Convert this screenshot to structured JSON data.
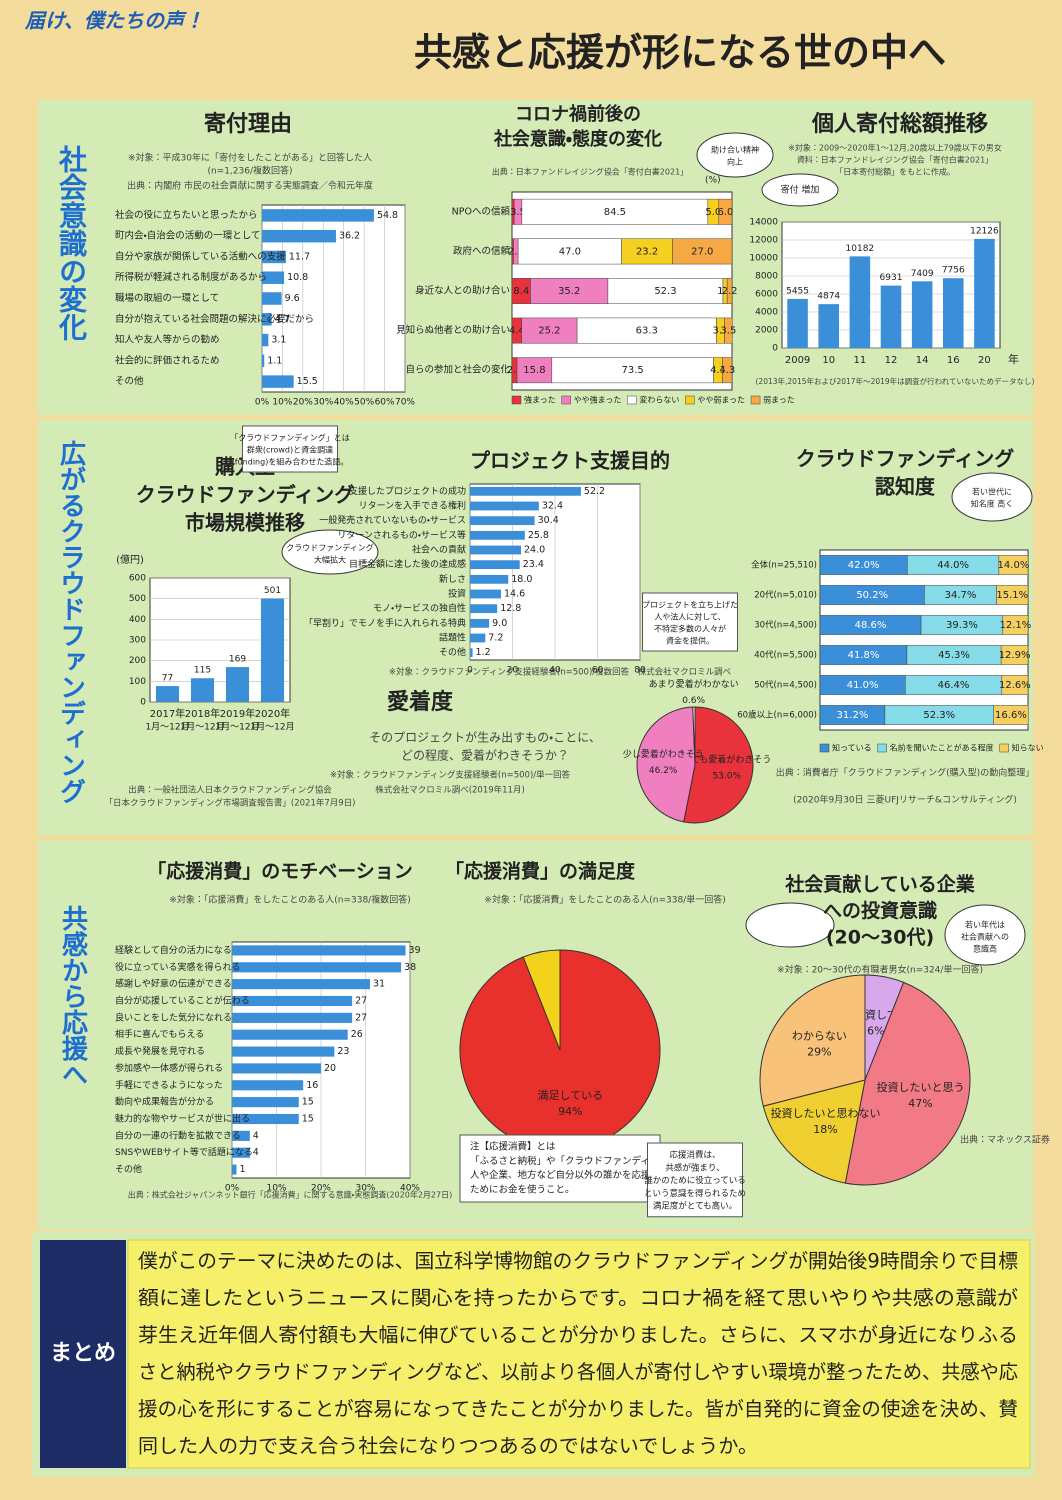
{
  "header": {
    "tagline": "届け、僕たちの声！",
    "title": "共感と応援が形になる世の中へ"
  },
  "sections": [
    {
      "title": "社会意識の変化"
    },
    {
      "title": "広がるクラウドファンディング"
    },
    {
      "title": "共感から応援へ"
    }
  ],
  "chart_data": [
    {
      "type": "hbar",
      "title": [
        "寄付理由"
      ],
      "notes": [
        "※対象：平成30年に「寄付をしたことがある」と回答した人",
        "(n=1,236/複数回答)",
        "出典：内閣府 市民の社会貢献に関する実態調査／令和元年度"
      ],
      "categories": [
        "社会の役に立ちたいと思ったから",
        "町内会・自治会の活動の一環として",
        "自分や家族が関係している活動への支援",
        "所得税が軽減される制度があるから",
        "職場の取組の一環として",
        "自分が抱えている社会問題の解決に必要だから",
        "知人や友人等からの勧め",
        "社会的に評価されるため",
        "その他"
      ],
      "values": [
        54.8,
        36.2,
        11.7,
        10.8,
        9.6,
        4.7,
        3.1,
        1.1,
        15.5
      ],
      "color": "#3a8fd8",
      "xlim": [
        0,
        70
      ],
      "xticks": [
        {
          "value": 0,
          "label": "0%"
        },
        {
          "value": 10,
          "label": "10%"
        },
        {
          "value": 20,
          "label": "20%"
        },
        {
          "value": 30,
          "label": "30%"
        },
        {
          "value": 40,
          "label": "40%"
        },
        {
          "value": 50,
          "label": "50%"
        },
        {
          "value": 60,
          "label": "60%"
        },
        {
          "value": 70,
          "label": "70%"
        }
      ],
      "grid": true
    },
    {
      "type": "stack",
      "title": [
        "コロナ禍前後の",
        "社会意識・態度の変化"
      ],
      "notes": [
        "出典：日本ファンドレイジング協会「寄付白書2021」"
      ],
      "unit": "(%)",
      "categories": [
        "NPOへの信頼",
        "政府への信頼",
        "身近な人との助け合い",
        "見知らぬ他者との助け合い",
        "自らの参加と社会の変化"
      ],
      "xlim": [
        0,
        100
      ],
      "series": [
        {
          "name": "強まった",
          "color": "#e8323c",
          "values": [
            1.0,
            0.7,
            8.4,
            4.4,
            2.3
          ],
          "value_labels": [
            null,
            null,
            "8.4",
            "4.4",
            "2.3"
          ]
        },
        {
          "name": "やや強まった",
          "color": "#f07fc0",
          "values": [
            3.5,
            2.1,
            35.2,
            25.2,
            15.8
          ],
          "value_labels": [
            "3.5",
            "2.1",
            "35.2",
            "25.2",
            "15.8"
          ]
        },
        {
          "name": "変わらない",
          "color": "#ffffff",
          "values": [
            84.5,
            47.0,
            52.3,
            63.3,
            73.5
          ],
          "value_labels": [
            "84.5",
            "47.0",
            "52.3",
            "63.3",
            "73.5"
          ]
        },
        {
          "name": "やや弱まった",
          "color": "#f5d020",
          "values": [
            5.0,
            23.2,
            1.9,
            3.7,
            4.1
          ],
          "value_labels": [
            "5.0",
            "23.2",
            "1.9",
            "3.7",
            "4.1"
          ]
        },
        {
          "name": "弱まった",
          "color": "#f5a844",
          "values": [
            6.0,
            27.0,
            2.2,
            3.5,
            4.3
          ],
          "value_labels": [
            "6.0",
            "27.0",
            "2.2",
            "3.5",
            "4.3"
          ]
        }
      ]
    },
    {
      "type": "vbar",
      "title": [
        "個人寄付総額推移"
      ],
      "notes": [
        "※対象：2009〜2020年1〜12月,20歳以上79歳以下の男女",
        "資料：日本ファンドレイジング協会「寄付白書2021」",
        "「日本寄付総額」をもとに作成。",
        "(2013年,2015年および2017年〜2019年は調査が行われていないためデータなし)"
      ],
      "categories": [
        "2009",
        "10",
        "11",
        "12",
        "14",
        "16",
        "20"
      ],
      "x_unit": "年",
      "values": [
        5455,
        4874,
        10182,
        6931,
        7409,
        7756,
        12126
      ],
      "color": "#3a8fd8",
      "ylim": [
        0,
        14000
      ],
      "yticks": [
        0,
        2000,
        4000,
        6000,
        8000,
        10000,
        12000,
        14000
      ],
      "grid": true
    },
    {
      "type": "vbar",
      "title": [
        "購入型",
        "クラウドファンディング",
        "市場規模推移"
      ],
      "unit": "(億円)",
      "notes": [
        "出典：一般社団法人日本クラウドファンディング協会",
        "「日本クラウドファンディング市場調査報告書」(2021年7月9日)"
      ],
      "categories": [
        "2017年",
        "2018年",
        "2019年",
        "2020年"
      ],
      "category_sublabels": [
        "1月〜12月",
        "1月〜12月",
        "1月〜12月",
        "1月〜12月"
      ],
      "values": [
        77,
        115,
        169,
        501
      ],
      "color": "#3a8fd8",
      "ylim": [
        0,
        600
      ],
      "yticks": [
        0,
        100,
        200,
        300,
        400,
        500,
        600
      ],
      "grid": true
    },
    {
      "type": "hbar",
      "title": [
        "プロジェクト支援目的"
      ],
      "notes": [
        "※対象：クラウドファンディング支援経験者(n=500)/複数回答　株式会社マクロミル調べ"
      ],
      "categories": [
        "支援したプロジェクトの成功",
        "リターンを入手できる権利",
        "一般発売されていないもの・サービス",
        "リターンされるもの・サービス等",
        "社会への貢献",
        "目標金額に達した後の達成感",
        "新しさ",
        "投資",
        "モノ・サービスの独自性",
        "「早割り」でモノを手に入れられる特典",
        "話題性",
        "その他"
      ],
      "values": [
        52.2,
        32.4,
        30.4,
        25.8,
        24.0,
        23.4,
        18.0,
        14.6,
        12.8,
        9.0,
        7.2,
        1.2
      ],
      "value_labels": [
        "52.2",
        "32.4",
        "30.4",
        "25.8",
        "24.0",
        "23.4",
        "18.0",
        "14.6",
        "12.8",
        "9.0",
        "7.2",
        "1.2"
      ],
      "color": "#3a8fd8",
      "xlim": [
        0,
        80
      ],
      "xticks": [
        0,
        20,
        40,
        60,
        80
      ],
      "grid": true
    },
    {
      "type": "stack",
      "title": [
        "クラウドファンディング",
        "認知度"
      ],
      "notes": [
        "出典：消費者庁「クラウドファンディング(購入型)の動向整理」",
        "(2020年9月30日 三菱UFJリサーチ&コンサルティング)"
      ],
      "categories": [
        "全体(n=25,510)",
        "20代(n=5,010)",
        "30代(n=4,500)",
        "40代(n=5,500)",
        "50代(n=4,500)",
        "60歳以上(n=6,000)"
      ],
      "xlim": [
        0,
        100
      ],
      "series": [
        {
          "name": "知っている",
          "color": "#3a8fd8",
          "values": [
            42.0,
            50.2,
            48.6,
            41.8,
            41.0,
            31.2
          ],
          "value_labels": [
            "42.0%",
            "50.2%",
            "48.6%",
            "41.8%",
            "41.0%",
            "31.2%"
          ]
        },
        {
          "name": "名前を聞いたことがある程度",
          "color": "#86dbe8",
          "values": [
            44.0,
            34.7,
            39.3,
            45.3,
            46.4,
            52.3
          ],
          "value_labels": [
            "44.0%",
            "34.7%",
            "39.3%",
            "45.3%",
            "46.4%",
            "52.3%"
          ]
        },
        {
          "name": "知らない",
          "color": "#f5d060",
          "values": [
            14.0,
            15.1,
            12.1,
            12.9,
            12.6,
            16.6
          ],
          "value_labels": [
            "14.0%",
            "15.1%",
            "12.1%",
            "12.9%",
            "12.6%",
            "16.6%"
          ]
        }
      ]
    },
    {
      "type": "pie",
      "title": [
        "愛着度"
      ],
      "notes": [
        "そのプロジェクトが生み出すもの・ことに、",
        "どの程度、愛着がわきそうか？",
        "※対象：クラウドファンディング支援経験者(n=500)/単一回答",
        "株式会社マクロミル調べ(2019年11月)"
      ],
      "categories": [
        "とても愛着がわきそう",
        "少し愛着がわきそう",
        "あまり愛着がわかない"
      ],
      "values": [
        53.0,
        46.2,
        0.6
      ],
      "value_labels": [
        "53.0%",
        "46.2%",
        "0.6%"
      ],
      "colors": [
        "#e8323c",
        "#f07fc0",
        "#ffffff"
      ]
    },
    {
      "type": "hbar",
      "title": [
        "「応援消費」のモチベーション"
      ],
      "notes": [
        "※対象：「応援消費」をしたことのある人(n=338/複数回答)",
        "出典：株式会社ジャパンネット銀行「応援消費」に関する意識・実態調査(2020年2月27日)"
      ],
      "categories": [
        "経験として自分の活力になる",
        "役に立っている実感を得られる",
        "感謝しや好意の伝達ができる",
        "自分が応援していることが伝わる",
        "良いことをした気分になれる",
        "相手に喜んでもらえる",
        "成長や発展を見守れる",
        "参加感や一体感が得られる",
        "手軽にできるようになった",
        "動向や成果報告が分かる",
        "魅力的な物やサービスが世に出る",
        "自分の一連の行動を拡散できる",
        "SNSやWEBサイト等で話題になる",
        "その他"
      ],
      "values": [
        39,
        38,
        31,
        27,
        27,
        26,
        23,
        20,
        16,
        15,
        15,
        4,
        4,
        1
      ],
      "color": "#3a8fd8",
      "xlim": [
        0,
        40
      ],
      "xticks": [
        {
          "value": 0,
          "label": "0%"
        },
        {
          "value": 10,
          "label": "10%"
        },
        {
          "value": 20,
          "label": "20%"
        },
        {
          "value": 30,
          "label": "30%"
        },
        {
          "value": 40,
          "label": "40%"
        }
      ],
      "grid": true
    },
    {
      "type": "pie",
      "title": [
        "「応援消費」の満足度"
      ],
      "notes": [
        "※対象：「応援消費」をしたことのある人(n=338/単一回答)"
      ],
      "categories": [
        "満足している",
        null
      ],
      "values": [
        94,
        6
      ],
      "value_labels": [
        "94%",
        null
      ],
      "colors": [
        "#e8302c",
        "#f2d21a"
      ]
    },
    {
      "type": "pie",
      "title": [
        "社会貢献している企業",
        "への投資意識",
        "(20〜30代)"
      ],
      "notes": [
        "※対象：20〜30代の有職者男女(n=324/単一回答)",
        "出典：マネックス証券"
      ],
      "categories": [
        "既に投資している",
        "投資したいと思う",
        "投資したいと思わない",
        "わからない"
      ],
      "values": [
        6,
        47,
        18,
        29
      ],
      "value_labels": [
        "6%",
        "47%",
        "18%",
        "29%"
      ],
      "colors": [
        "#d8a8ec",
        "#f27a86",
        "#f0d030",
        "#f8c278"
      ]
    }
  ],
  "bubbles": [
    {
      "lines": [
        "助け合い精神",
        "向上"
      ]
    },
    {
      "lines": [
        "寄付 増加"
      ]
    },
    {
      "lines": [
        "クラウドファンディング",
        "大幅拡大"
      ]
    },
    {
      "lines": [
        "若い世代に",
        "知名度 高く"
      ]
    },
    {
      "lines": [
        "若い年代は",
        "社会貢献への",
        "意識高"
      ]
    },
    {
      "lines": [
        "「クラウドファンディング」とは",
        "群衆(crowd)と資金調達",
        "(funding)を組み合わせた造語。"
      ]
    },
    {
      "lines": [
        "プロジェクトを立ち上げた",
        "人や法人に対して、",
        "不特定多数の人々が",
        "資金を提供。"
      ]
    },
    {
      "lines": [
        "注【応援消費】とは",
        "「ふるさと納税」や「クラウドファンディング」のように、",
        "人や企業、地方など自分以外の誰かを応援する",
        "ためにお金を使うこと。"
      ]
    },
    {
      "lines": [
        "応援消費は、",
        "共感が強まり、",
        "誰かのために役立っている",
        "という意識を得られるため",
        "満足度がとても高い。"
      ]
    }
  ],
  "summary": {
    "label": "まとめ",
    "lines": [
      "僕がこのテーマに決めたのは、国立科学博物館のクラウドファンディングが開始後9時間余りで目標",
      "額に達したというニュースに関心を持ったからです。コロナ禍を経て思いやりや共感の意識が",
      "芽生え近年個人寄付額も大幅に伸びていることが分かりました。さらに、スマホが身近になりふる",
      "さと納税やクラウドファンディングなど、以前より各個人が寄付しやすい環境が整ったため、共感や応",
      "援の心を形にすることが容易になってきたことが分かりました。皆が自発的に資金の使途を決め、賛",
      "同した人の力で支え合う社会になりつつあるのではないでしょうか。"
    ]
  }
}
